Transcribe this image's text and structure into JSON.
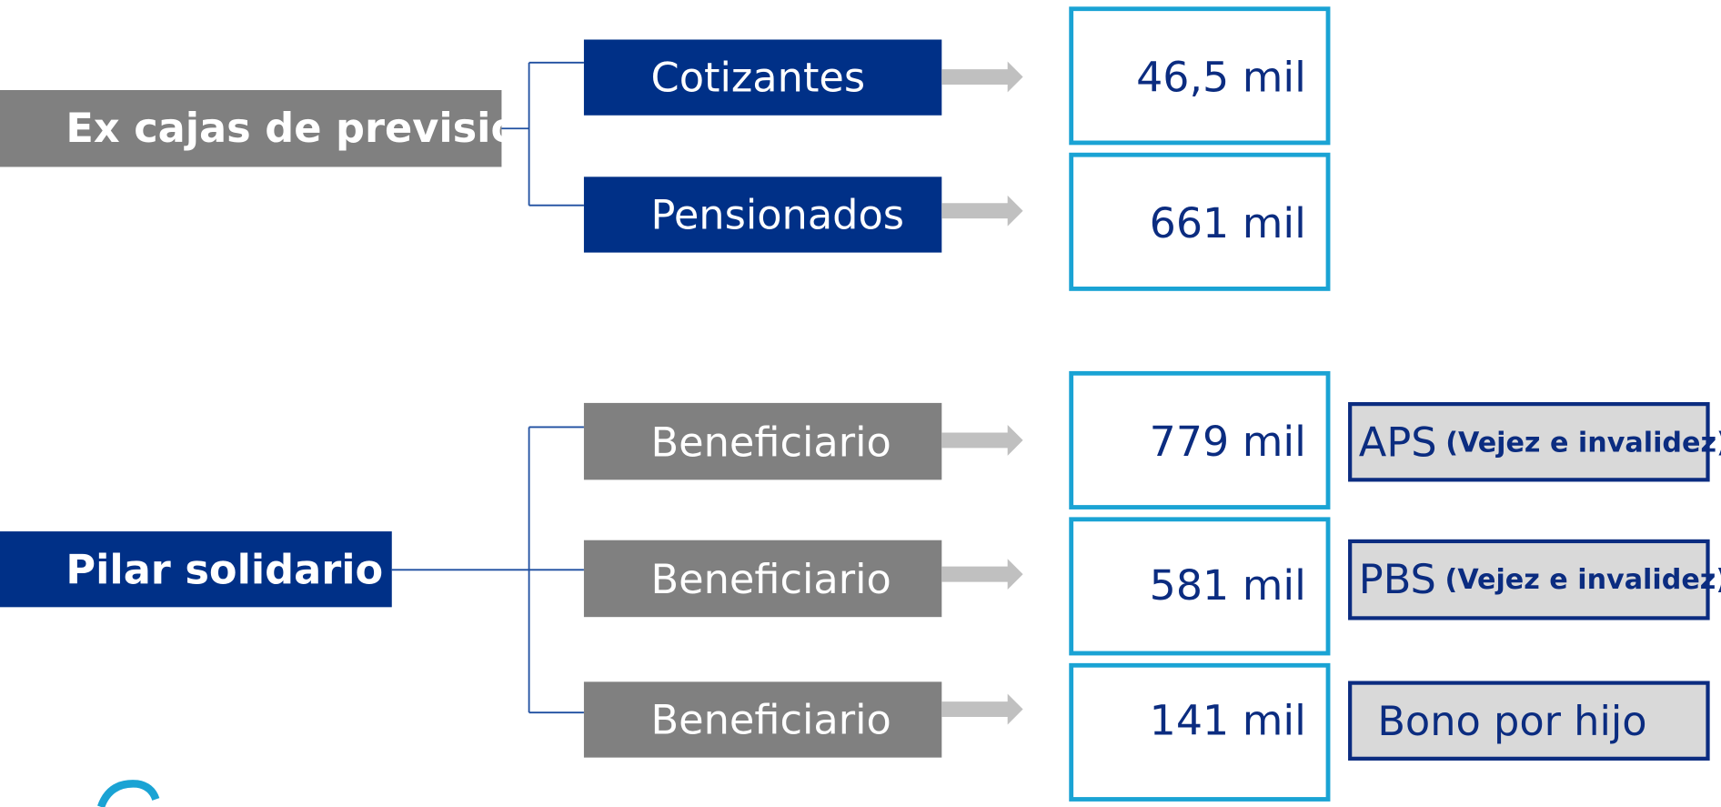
{
  "groups": [
    {
      "label": "Ex cajas de previsión",
      "items": [
        {
          "label": "Cotizantes",
          "value": "46,5 mil"
        },
        {
          "label": "Pensionados",
          "value": "661 mil"
        }
      ]
    },
    {
      "label": "Pilar solidario",
      "items": [
        {
          "label": "Beneficiario",
          "value": "779 mil",
          "program": {
            "name": "APS",
            "detail": "(Vejez e invalidez)"
          }
        },
        {
          "label": "Beneficiario",
          "value": "581 mil",
          "program": {
            "name": "PBS",
            "detail": "(Vejez e invalidez)"
          }
        },
        {
          "label": "Beneficiario",
          "value": "141 mil",
          "program": {
            "name": "Bono por hijo"
          }
        }
      ]
    }
  ]
}
